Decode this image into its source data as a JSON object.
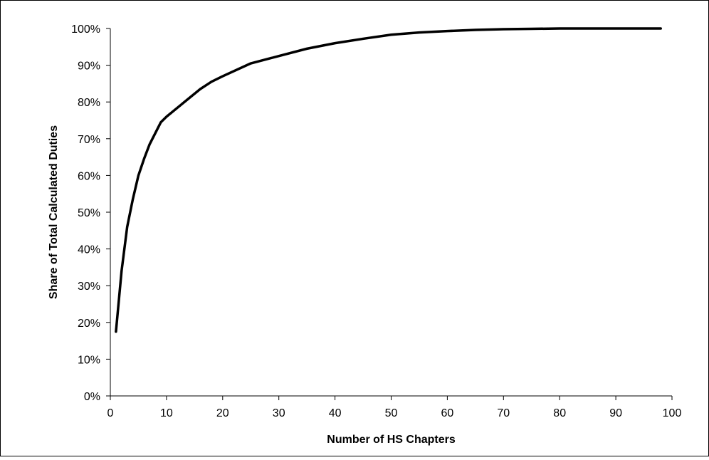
{
  "chart_data": {
    "type": "line",
    "title": "",
    "xlabel": "Number of HS Chapters",
    "ylabel": "Share of Total Calculated Duties",
    "xlim": [
      0,
      100
    ],
    "ylim": [
      0,
      100
    ],
    "x_ticks": [
      "0",
      "10",
      "20",
      "30",
      "40",
      "50",
      "60",
      "70",
      "80",
      "90",
      "100"
    ],
    "y_ticks": [
      "0%",
      "10%",
      "20%",
      "30%",
      "40%",
      "50%",
      "60%",
      "70%",
      "80%",
      "90%",
      "100%"
    ],
    "grid": false,
    "legend": "none",
    "line_color": "#000000",
    "series": [
      {
        "x": [
          1,
          2,
          3,
          4,
          5,
          6,
          7,
          8,
          9,
          10,
          12,
          14,
          16,
          18,
          20,
          25,
          30,
          35,
          40,
          45,
          50,
          55,
          60,
          65,
          70,
          75,
          80,
          85,
          90,
          95,
          98
        ],
        "y": [
          17.5,
          34,
          46,
          53.5,
          60,
          64.5,
          68.5,
          71.5,
          74.5,
          76,
          78.5,
          81,
          83.5,
          85.5,
          87,
          90.5,
          92.5,
          94.5,
          96,
          97.2,
          98.3,
          98.9,
          99.3,
          99.6,
          99.8,
          99.9,
          100,
          100,
          100,
          100,
          100
        ]
      }
    ]
  }
}
